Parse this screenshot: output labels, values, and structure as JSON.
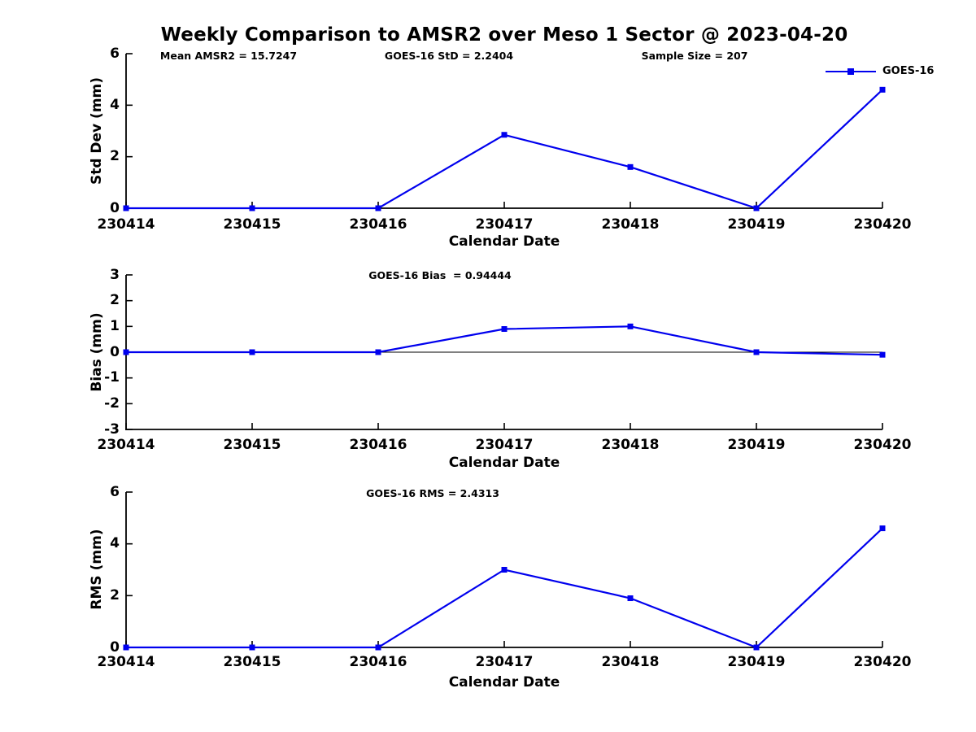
{
  "title": "Weekly Comparison to AMSR2 over Meso 1 Sector @ 2023-04-20",
  "legend": {
    "label": "GOES-16",
    "position": "top-right",
    "marker": "filled-square",
    "frame": false
  },
  "colors": {
    "series": "#0000ee",
    "axis": "#000000",
    "text": "#000000",
    "background": "#ffffff"
  },
  "chart_data": [
    {
      "id": "std-dev",
      "type": "line",
      "annotations": [
        "Mean AMSR2 = 15.7247",
        "GOES-16 StD = 2.2404",
        "Sample Size = 207"
      ],
      "categories": [
        "230414",
        "230415",
        "230416",
        "230417",
        "230418",
        "230419",
        "230420"
      ],
      "series": [
        {
          "name": "GOES-16",
          "marker": "square",
          "values": [
            0,
            0,
            0,
            2.85,
            1.6,
            0,
            4.6
          ]
        }
      ],
      "xlabel": "Calendar Date",
      "ylabel": "Std Dev (mm)",
      "ylim": [
        0,
        6
      ],
      "yticks": [
        0,
        2,
        4,
        6
      ],
      "zero_line": false,
      "grid": false
    },
    {
      "id": "bias",
      "type": "line",
      "annotations": [
        "GOES-16 Bias  = 0.94444"
      ],
      "categories": [
        "230414",
        "230415",
        "230416",
        "230417",
        "230418",
        "230419",
        "230420"
      ],
      "series": [
        {
          "name": "GOES-16",
          "marker": "square",
          "values": [
            0,
            0,
            0,
            0.9,
            1.0,
            0,
            -0.1
          ]
        }
      ],
      "xlabel": "Calendar Date",
      "ylabel": "Bias (mm)",
      "ylim": [
        -3,
        3
      ],
      "yticks": [
        -3,
        -2,
        -1,
        0,
        1,
        2,
        3
      ],
      "zero_line": true,
      "grid": false
    },
    {
      "id": "rms",
      "type": "line",
      "annotations": [
        "GOES-16 RMS = 2.4313"
      ],
      "categories": [
        "230414",
        "230415",
        "230416",
        "230417",
        "230418",
        "230419",
        "230420"
      ],
      "series": [
        {
          "name": "GOES-16",
          "marker": "square",
          "values": [
            0,
            0,
            0,
            3.0,
            1.9,
            0,
            4.6
          ]
        }
      ],
      "xlabel": "Calendar Date",
      "ylabel": "RMS (mm)",
      "ylim": [
        0,
        6
      ],
      "yticks": [
        0,
        2,
        4,
        6
      ],
      "zero_line": false,
      "grid": false
    }
  ]
}
